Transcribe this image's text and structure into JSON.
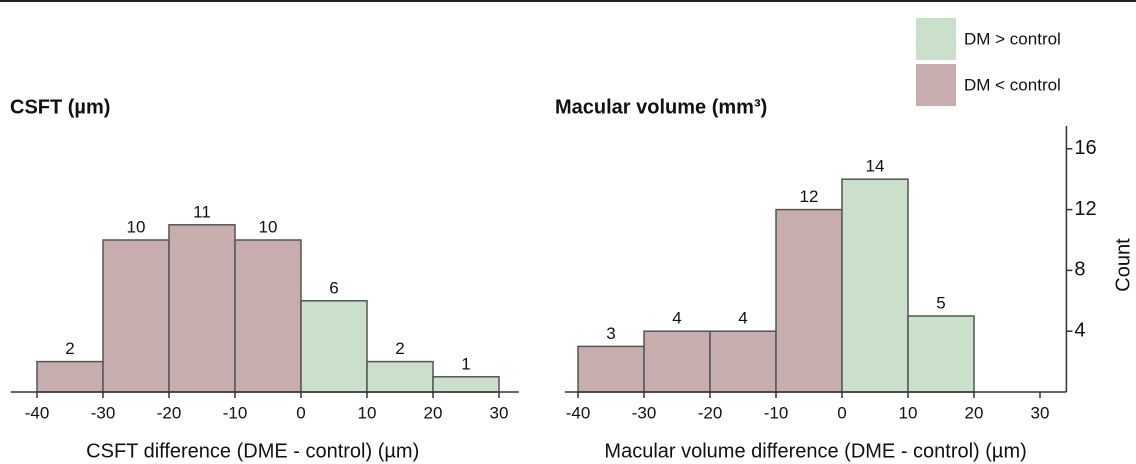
{
  "chart_data": [
    {
      "type": "histogram",
      "title": "CSFT (µm)",
      "xlabel": "CSFT difference (DME - control) (µm)",
      "bins": [
        -40,
        -30,
        -20,
        -10,
        0,
        10,
        20,
        30
      ],
      "values": [
        2,
        10,
        11,
        10,
        6,
        2,
        1
      ],
      "colors": [
        "#c8adaf",
        "#c8adaf",
        "#c8adaf",
        "#c8adaf",
        "#cbe0cb",
        "#cbe0cb",
        "#cbe0cb"
      ],
      "xlim": [
        -44,
        33
      ],
      "xticks": [
        -40,
        -30,
        -20,
        -10,
        0,
        10,
        20,
        30
      ],
      "ylim": [
        0,
        17.5
      ]
    },
    {
      "type": "histogram",
      "title": "Macular volume (mm³)",
      "xlabel": "Macular volume difference (DME - control) (µm)",
      "ylabel": "Count",
      "bins": [
        -40,
        -30,
        -20,
        -10,
        0,
        10,
        20
      ],
      "values": [
        3,
        4,
        4,
        12,
        14,
        5
      ],
      "colors": [
        "#c8adaf",
        "#c8adaf",
        "#c8adaf",
        "#c8adaf",
        "#cbe0cb",
        "#cbe0cb"
      ],
      "xlim": [
        -42,
        34
      ],
      "xticks": [
        -40,
        -30,
        -20,
        -10,
        0,
        10,
        20,
        30
      ],
      "ylim": [
        0,
        17.5
      ],
      "yticks": [
        4,
        8,
        12,
        16
      ],
      "legend": [
        {
          "label": "DM > control",
          "color": "#cbe0cb"
        },
        {
          "label": "DM < control",
          "color": "#c8adaf"
        }
      ]
    }
  ]
}
